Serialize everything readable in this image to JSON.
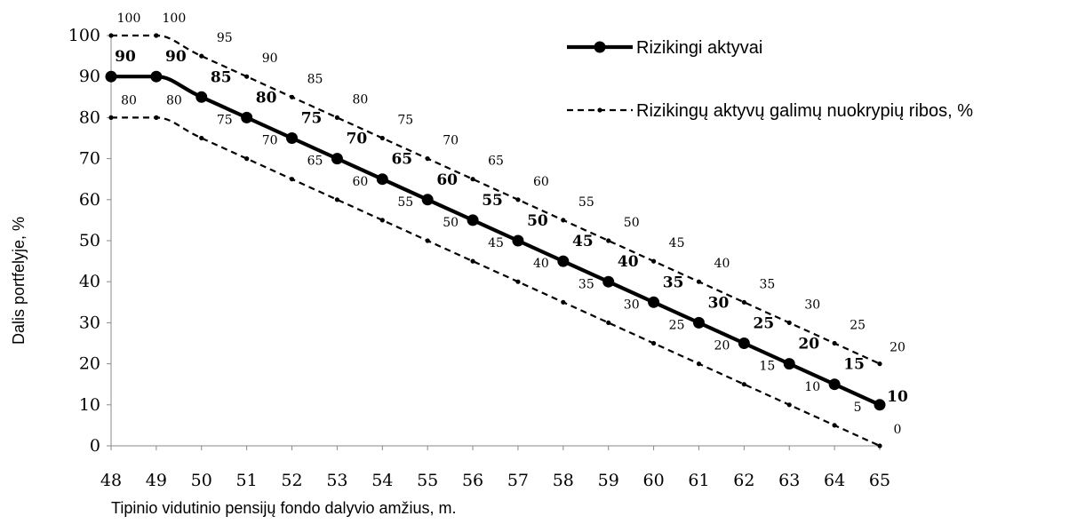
{
  "chart_data": {
    "type": "line",
    "title": "",
    "xlabel": "Tipinio vidutinio pensijų fondo dalyvio amžius, m.",
    "ylabel": "Dalis portfelyje, %",
    "x": [
      48,
      49,
      50,
      51,
      52,
      53,
      54,
      55,
      56,
      57,
      58,
      59,
      60,
      61,
      62,
      63,
      64,
      65
    ],
    "xlim": [
      48,
      65
    ],
    "ylim": [
      0,
      100
    ],
    "yticks": [
      0,
      10,
      20,
      30,
      40,
      50,
      60,
      70,
      80,
      90,
      100
    ],
    "grid": false,
    "legend_position": "top-right",
    "series": [
      {
        "name": "Rizikingi aktyvai",
        "style": "solid",
        "values": [
          90,
          90,
          85,
          80,
          75,
          70,
          65,
          60,
          55,
          50,
          45,
          40,
          35,
          30,
          25,
          20,
          15,
          10
        ]
      },
      {
        "name": "Rizikingų aktyvų galimų nuokrypių ribos, %",
        "style": "dashed",
        "values": [
          100,
          100,
          95,
          90,
          85,
          80,
          75,
          70,
          65,
          60,
          55,
          50,
          45,
          40,
          35,
          30,
          25,
          20
        ]
      },
      {
        "name": "",
        "style": "dashed",
        "values": [
          80,
          80,
          75,
          70,
          65,
          60,
          55,
          50,
          45,
          40,
          35,
          30,
          25,
          20,
          15,
          10,
          5,
          0
        ]
      }
    ],
    "colors": {
      "line": "#000000",
      "background": "#ffffff"
    }
  }
}
